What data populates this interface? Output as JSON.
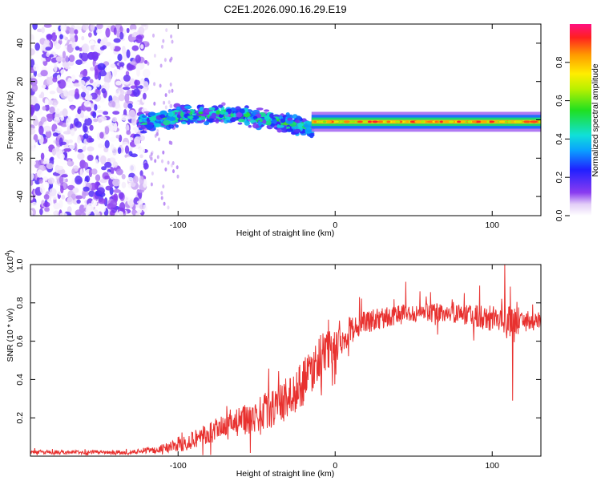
{
  "title": "C2E1.2026.090.16.29.E19",
  "chart_data": [
    {
      "type": "heatmap",
      "xlabel": "Height of straight line (km)",
      "ylabel": "Frequency (Hz)",
      "xlim": [
        -194,
        131
      ],
      "ylim": [
        -50,
        50
      ],
      "xticks": [
        -100,
        0,
        100
      ],
      "xtick_labels": [
        "-100",
        "0",
        "100"
      ],
      "yticks": [
        -40,
        -20,
        0,
        20,
        40
      ],
      "ytick_labels": [
        "-40",
        "-20",
        "0",
        "20",
        "40"
      ],
      "colorbar": {
        "label": "Normalized spectral amplitude",
        "range": [
          0,
          1
        ],
        "ticks": [
          0.0,
          0.2,
          0.4,
          0.6,
          0.8
        ],
        "tick_labels": [
          "0.0",
          "0.2",
          "0.4",
          "0.6",
          "0.8"
        ]
      },
      "features": [
        {
          "name": "broadband noise",
          "x_range": [
            -194,
            -120
          ],
          "freq_range": [
            -50,
            50
          ],
          "amplitude": [
            0.0,
            0.2
          ]
        },
        {
          "name": "diffuse signal band",
          "x_range": [
            -125,
            -15
          ],
          "center_freq": [
            -2,
            3
          ],
          "half_width_hz": 6,
          "amplitude": [
            0.1,
            0.6
          ]
        },
        {
          "name": "narrow carrier line",
          "x_range": [
            -15,
            131
          ],
          "center_freq": -1,
          "half_width_hz": 2,
          "amplitude": [
            0.6,
            0.95
          ]
        }
      ]
    },
    {
      "type": "line",
      "xlabel": "Height of straight line (km)",
      "ylabel": "SNR (10 * v/v)",
      "y_multiplier": "(x10^4)",
      "xlim": [
        -194,
        131
      ],
      "ylim": [
        0,
        1.0
      ],
      "xticks": [
        -100,
        0,
        100
      ],
      "xtick_labels": [
        "-100",
        "0",
        "100"
      ],
      "yticks": [
        0.2,
        0.4,
        0.6,
        0.8,
        1.0
      ],
      "ytick_labels": [
        "0.2",
        "0.4",
        "0.6",
        "0.8",
        "1.0"
      ],
      "series": [
        {
          "name": "SNR",
          "color": "#e8312f",
          "envelope_x": [
            -194,
            -130,
            -120,
            -100,
            -80,
            -60,
            -40,
            -25,
            -15,
            -10,
            -5,
            0,
            5,
            10,
            20,
            40,
            60,
            80,
            100,
            110,
            120,
            131
          ],
          "envelope_mean": [
            0.02,
            0.02,
            0.03,
            0.06,
            0.12,
            0.18,
            0.25,
            0.33,
            0.45,
            0.52,
            0.55,
            0.58,
            0.62,
            0.66,
            0.7,
            0.74,
            0.75,
            0.74,
            0.72,
            0.7,
            0.71,
            0.7
          ],
          "envelope_noise": [
            0.01,
            0.01,
            0.015,
            0.04,
            0.06,
            0.08,
            0.1,
            0.12,
            0.12,
            0.12,
            0.1,
            0.1,
            0.08,
            0.07,
            0.06,
            0.05,
            0.05,
            0.05,
            0.07,
            0.09,
            0.06,
            0.05
          ],
          "notable_points": [
            {
              "x": 108,
              "y": 1.0
            },
            {
              "x": 113,
              "y": 0.29
            },
            {
              "x": 45,
              "y": 0.91
            },
            {
              "x": 92,
              "y": 0.89
            }
          ]
        }
      ]
    }
  ]
}
